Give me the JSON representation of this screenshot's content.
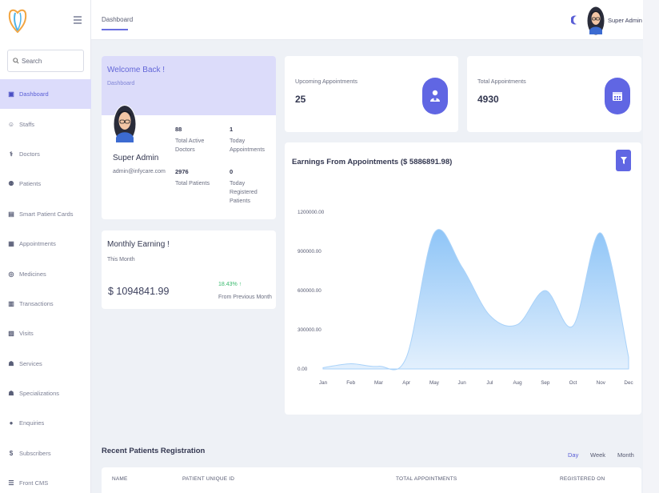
{
  "sidebar": {
    "search_placeholder": "Search",
    "items": [
      {
        "label": "Dashboard",
        "icon": "dashboard-icon",
        "active": true
      },
      {
        "label": "Staffs",
        "icon": "staff-icon"
      },
      {
        "label": "Doctors",
        "icon": "doctor-icon"
      },
      {
        "label": "Patients",
        "icon": "patients-icon"
      },
      {
        "label": "Smart Patient Cards",
        "icon": "id-card-icon"
      },
      {
        "label": "Appointments",
        "icon": "calendar-icon"
      },
      {
        "label": "Medicines",
        "icon": "pills-icon"
      },
      {
        "label": "Transactions",
        "icon": "money-icon"
      },
      {
        "label": "Visits",
        "icon": "hospital-icon"
      },
      {
        "label": "Services",
        "icon": "services-icon"
      },
      {
        "label": "Specializations",
        "icon": "specialization-icon"
      },
      {
        "label": "Enquiries",
        "icon": "question-icon"
      },
      {
        "label": "Subscribers",
        "icon": "dollar-icon"
      },
      {
        "label": "Front CMS",
        "icon": "cms-icon"
      }
    ]
  },
  "header": {
    "breadcrumb": "Dashboard",
    "username": "Super Admin"
  },
  "welcome": {
    "title": "Welcome Back !",
    "subtitle": "Dashboard",
    "name": "Super Admin",
    "email": "admin@infycare.com",
    "stats": [
      {
        "value": "88",
        "label": "Total Active Doctors"
      },
      {
        "value": "1",
        "label": "Today Appointments"
      },
      {
        "value": "2976",
        "label": "Total Patients"
      },
      {
        "value": "0",
        "label": "Today Registered Patients"
      }
    ]
  },
  "monthly": {
    "title": "Monthly Earning !",
    "subtitle": "This Month",
    "amount": "$ 1094841.99",
    "change": "18.43%",
    "change_label": "From Previous Month"
  },
  "upcoming": {
    "label": "Upcoming Appointments",
    "value": "25"
  },
  "total_appointments": {
    "label": "Total Appointments",
    "value": "4930"
  },
  "earnings": {
    "title": "Earnings From Appointments ($ 5886891.98)"
  },
  "chart_data": {
    "type": "area",
    "categories": [
      "Jan",
      "Feb",
      "Mar",
      "Apr",
      "May",
      "Jun",
      "Jul",
      "Aug",
      "Sep",
      "Oct",
      "Nov",
      "Dec"
    ],
    "series": [
      {
        "values": [
          10000,
          40000,
          20000,
          90000,
          1040000,
          780000,
          410000,
          340000,
          600000,
          330000,
          1040000,
          90000
        ]
      }
    ],
    "yticks": [
      "1200000.00",
      "900000.00",
      "600000.00",
      "300000.00",
      "0.00"
    ],
    "ylim": [
      0,
      1200000
    ],
    "color": "#9fcdf8",
    "grid": false
  },
  "recent": {
    "title": "Recent Patients Registration",
    "ranges": [
      "Day",
      "Week",
      "Month"
    ],
    "columns": [
      "NAME",
      "PATIENT UNIQUE ID",
      "TOTAL APPOINTMENTS",
      "REGISTERED ON"
    ]
  },
  "colors": {
    "accent": "#6066e3",
    "positive": "#38b96d",
    "active_bg": "#dcdcfb"
  }
}
